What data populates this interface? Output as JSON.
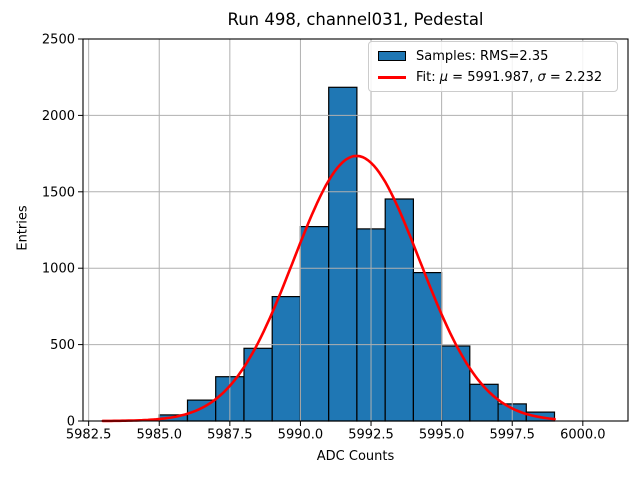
{
  "chart_data": {
    "type": "bar",
    "subtype": "histogram-with-gaussian-fit",
    "title": "Run 498, channel031, Pedestal",
    "xlabel": "ADC Counts",
    "ylabel": "Entries",
    "xlim": [
      5982.3,
      6001.6
    ],
    "ylim": [
      0,
      2500
    ],
    "xticks": [
      5982.5,
      5985.0,
      5987.5,
      5990.0,
      5992.5,
      5995.0,
      5997.5,
      6000.0
    ],
    "xtick_labels": [
      "5982.5",
      "5985.0",
      "5987.5",
      "5990.0",
      "5992.5",
      "5995.0",
      "5997.5",
      "6000.0"
    ],
    "yticks": [
      0,
      500,
      1000,
      1500,
      2000,
      2500
    ],
    "ytick_labels": [
      "0",
      "500",
      "1000",
      "1500",
      "2000",
      "2500"
    ],
    "grid": true,
    "grid_color": "#b0b0b0",
    "background": "#ffffff",
    "series": [
      {
        "name": "Samples: RMS=2.35",
        "type": "histogram",
        "bin_edges": [
          5985,
          5986,
          5987,
          5988,
          5989,
          5990,
          5991,
          5992,
          5993,
          5994,
          5995,
          5996,
          5997,
          5998,
          5999
        ],
        "counts": [
          40,
          137,
          290,
          476,
          814,
          1272,
          2184,
          1257,
          1453,
          971,
          491,
          240,
          112,
          58
        ],
        "fill": "#1f77b4",
        "edge": "#000000"
      },
      {
        "name": "Fit: μ = 5991.987, σ = 2.232",
        "type": "gaussian-line",
        "mu": 5991.987,
        "sigma": 2.232,
        "amplitude": 1735,
        "x_start": 5983.0,
        "x_end": 5999.0,
        "color": "#ff0000"
      }
    ],
    "legend": {
      "position": "upper-right",
      "entries": [
        {
          "swatch": "patch",
          "fill": "#1f77b4",
          "edge": "#000000",
          "label": "Samples: RMS=2.35"
        },
        {
          "swatch": "line",
          "color": "#ff0000",
          "label": "Fit: μ = 5991.987, σ = 2.232",
          "label_prefix": "Fit: ",
          "mu_symbol": "μ",
          "mu_text": " = 5991.987, ",
          "sigma_symbol": "σ",
          "sigma_text": " = 2.232"
        }
      ]
    }
  }
}
